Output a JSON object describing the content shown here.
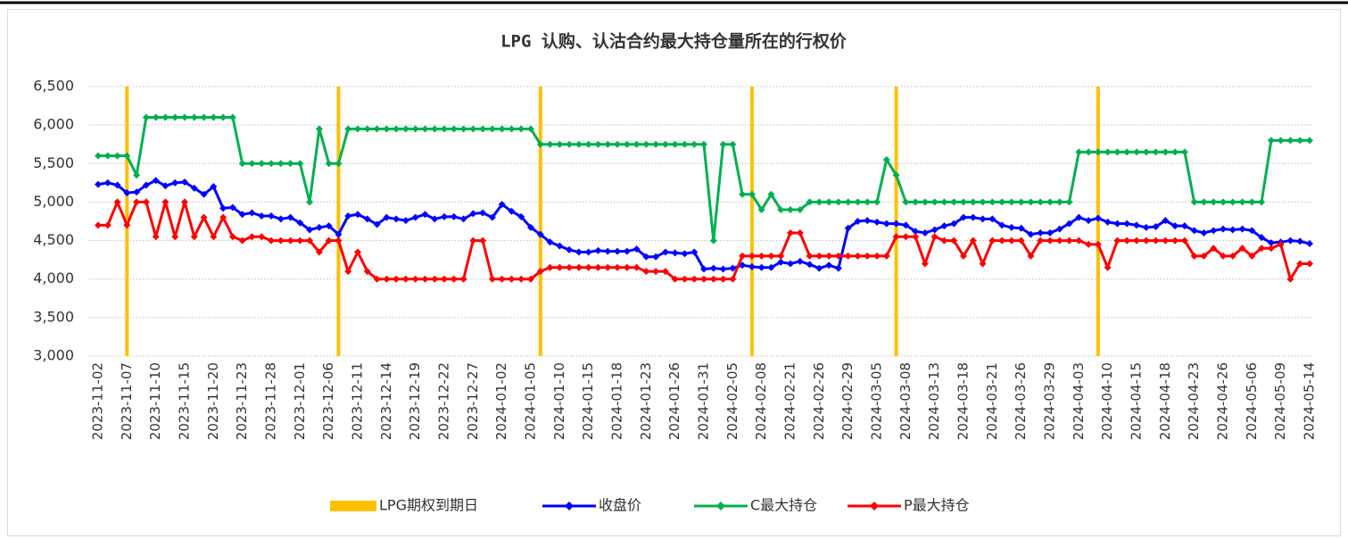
{
  "chart_data": {
    "type": "line",
    "title": "LPG 认购、认沽合约最大持仓量所在的行权价",
    "categories": [
      "2023-11-02",
      null,
      null,
      "2023-11-07",
      null,
      null,
      "2023-11-10",
      null,
      null,
      "2023-11-15",
      null,
      null,
      "2023-11-20",
      null,
      null,
      "2023-11-23",
      null,
      null,
      "2023-11-28",
      null,
      null,
      "2023-12-01",
      null,
      null,
      "2023-12-06",
      null,
      null,
      "2023-12-11",
      null,
      null,
      "2023-12-14",
      null,
      null,
      "2023-12-19",
      null,
      null,
      "2023-12-22",
      null,
      null,
      "2023-12-27",
      null,
      null,
      "2024-01-02",
      null,
      null,
      "2024-01-05",
      null,
      null,
      "2024-01-10",
      null,
      null,
      "2024-01-15",
      null,
      null,
      "2024-01-18",
      null,
      null,
      "2024-01-23",
      null,
      null,
      "2024-01-26",
      null,
      null,
      "2024-01-31",
      null,
      null,
      "2024-02-05",
      null,
      null,
      "2024-02-08",
      null,
      null,
      "2024-02-21",
      null,
      null,
      "2024-02-26",
      null,
      null,
      "2024-02-29",
      null,
      null,
      "2024-03-05",
      null,
      null,
      "2024-03-08",
      null,
      null,
      "2024-03-13",
      null,
      null,
      "2024-03-18",
      null,
      null,
      "2024-03-21",
      null,
      null,
      "2024-03-26",
      null,
      null,
      "2024-03-29",
      null,
      null,
      "2024-04-03",
      null,
      null,
      "2024-04-10",
      null,
      null,
      "2024-04-15",
      null,
      null,
      "2024-04-18",
      null,
      null,
      "2024-04-23",
      null,
      null,
      "2024-04-26",
      null,
      null,
      "2024-05-06",
      null,
      null,
      "2024-05-09",
      null,
      null,
      "2024-05-14"
    ],
    "series": [
      {
        "name": "LPG期权到期日",
        "type": "bar",
        "color": "#ffc000",
        "values": [
          null,
          null,
          null,
          6500,
          null,
          null,
          null,
          null,
          null,
          null,
          null,
          null,
          null,
          null,
          null,
          null,
          null,
          null,
          null,
          null,
          null,
          null,
          null,
          null,
          null,
          6500,
          null,
          null,
          null,
          null,
          null,
          null,
          null,
          null,
          null,
          null,
          null,
          null,
          null,
          null,
          null,
          null,
          null,
          null,
          null,
          null,
          6500,
          null,
          null,
          null,
          null,
          null,
          null,
          null,
          null,
          null,
          null,
          null,
          null,
          null,
          null,
          null,
          null,
          null,
          null,
          null,
          null,
          null,
          6500,
          null,
          null,
          null,
          null,
          null,
          null,
          null,
          null,
          null,
          null,
          null,
          null,
          null,
          null,
          6500,
          null,
          null,
          null,
          null,
          null,
          null,
          null,
          null,
          null,
          null,
          null,
          null,
          null,
          null,
          null,
          null,
          null,
          null,
          null,
          null,
          6500,
          null,
          null,
          null,
          null,
          null,
          null,
          null,
          null,
          null,
          null,
          null,
          null,
          null,
          null,
          null,
          null,
          null,
          null,
          null,
          null,
          null,
          null
        ]
      },
      {
        "name": "收盘价",
        "color": "#0000ff",
        "values": [
          5230,
          5250,
          5220,
          5120,
          5130,
          5220,
          5280,
          5210,
          5250,
          5260,
          5180,
          5100,
          5200,
          4920,
          4930,
          4840,
          4860,
          4820,
          4820,
          4780,
          4800,
          4730,
          4640,
          4670,
          4690,
          4580,
          4820,
          4840,
          4780,
          4710,
          4800,
          4780,
          4760,
          4800,
          4840,
          4780,
          4810,
          4810,
          4780,
          4850,
          4860,
          4800,
          4970,
          4880,
          4810,
          4670,
          4580,
          4480,
          4430,
          4380,
          4350,
          4350,
          4370,
          4360,
          4360,
          4360,
          4390,
          4290,
          4290,
          4350,
          4340,
          4330,
          4350,
          4130,
          4140,
          4130,
          4140,
          4180,
          4160,
          4150,
          4150,
          4220,
          4200,
          4230,
          4190,
          4140,
          4180,
          4140,
          4660,
          4750,
          4760,
          4740,
          4720,
          4720,
          4700,
          4620,
          4600,
          4640,
          4690,
          4720,
          4800,
          4800,
          4780,
          4780,
          4700,
          4670,
          4660,
          4580,
          4600,
          4600,
          4650,
          4720,
          4800,
          4760,
          4790,
          4740,
          4720,
          4720,
          4700,
          4670,
          4680,
          4760,
          4690,
          4690,
          4630,
          4600,
          4630,
          4650,
          4640,
          4650,
          4630,
          4540,
          4470,
          4480,
          4500,
          4490,
          4460
        ]
      },
      {
        "name": "C最大持仓",
        "color": "#00b050",
        "values": [
          5600,
          5600,
          5600,
          5600,
          5350,
          6100,
          6100,
          6100,
          6100,
          6100,
          6100,
          6100,
          6100,
          6100,
          6100,
          5500,
          5500,
          5500,
          5500,
          5500,
          5500,
          5500,
          5000,
          5950,
          5500,
          5500,
          5950,
          5950,
          5950,
          5950,
          5950,
          5950,
          5950,
          5950,
          5950,
          5950,
          5950,
          5950,
          5950,
          5950,
          5950,
          5950,
          5950,
          5950,
          5950,
          5950,
          5750,
          5750,
          5750,
          5750,
          5750,
          5750,
          5750,
          5750,
          5750,
          5750,
          5750,
          5750,
          5750,
          5750,
          5750,
          5750,
          5750,
          5750,
          4500,
          5750,
          5750,
          5100,
          5100,
          4900,
          5100,
          4900,
          4900,
          4900,
          5000,
          5000,
          5000,
          5000,
          5000,
          5000,
          5000,
          5000,
          5550,
          5350,
          5000,
          5000,
          5000,
          5000,
          5000,
          5000,
          5000,
          5000,
          5000,
          5000,
          5000,
          5000,
          5000,
          5000,
          5000,
          5000,
          5000,
          5000,
          5650,
          5650,
          5650,
          5650,
          5650,
          5650,
          5650,
          5650,
          5650,
          5650,
          5650,
          5650,
          5000,
          5000,
          5000,
          5000,
          5000,
          5000,
          5000,
          5000,
          5800,
          5800,
          5800,
          5800,
          5800
        ]
      },
      {
        "name": "P最大持仓",
        "color": "#ff0000",
        "values": [
          4700,
          4700,
          5000,
          4700,
          5000,
          5000,
          4550,
          5000,
          4550,
          5000,
          4550,
          4800,
          4550,
          4800,
          4550,
          4500,
          4550,
          4550,
          4500,
          4500,
          4500,
          4500,
          4500,
          4350,
          4500,
          4500,
          4100,
          4350,
          4100,
          4000,
          4000,
          4000,
          4000,
          4000,
          4000,
          4000,
          4000,
          4000,
          4000,
          4500,
          4500,
          4000,
          4000,
          4000,
          4000,
          4000,
          4100,
          4150,
          4150,
          4150,
          4150,
          4150,
          4150,
          4150,
          4150,
          4150,
          4150,
          4100,
          4100,
          4100,
          4000,
          4000,
          4000,
          4000,
          4000,
          4000,
          4000,
          4300,
          4300,
          4300,
          4300,
          4300,
          4600,
          4600,
          4300,
          4300,
          4300,
          4300,
          4300,
          4300,
          4300,
          4300,
          4300,
          4550,
          4550,
          4550,
          4200,
          4550,
          4500,
          4500,
          4300,
          4500,
          4200,
          4500,
          4500,
          4500,
          4500,
          4300,
          4500,
          4500,
          4500,
          4500,
          4500,
          4450,
          4450,
          4150,
          4500,
          4500,
          4500,
          4500,
          4500,
          4500,
          4500,
          4500,
          4300,
          4300,
          4400,
          4300,
          4300,
          4400,
          4300,
          4400,
          4400,
          4450,
          4000,
          4200,
          4200
        ]
      }
    ],
    "ylim": [
      3000,
      6500
    ],
    "yticks": [
      {
        "value": 3000,
        "label": "3,000"
      },
      {
        "value": 3500,
        "label": "3,500"
      },
      {
        "value": 4000,
        "label": "4,000"
      },
      {
        "value": 4500,
        "label": "4,500"
      },
      {
        "value": 5000,
        "label": "5,000"
      },
      {
        "value": 5500,
        "label": "5,500"
      },
      {
        "value": 6000,
        "label": "6,000"
      },
      {
        "value": 6500,
        "label": "6,500"
      }
    ],
    "grid": true,
    "legend": "bottom"
  }
}
